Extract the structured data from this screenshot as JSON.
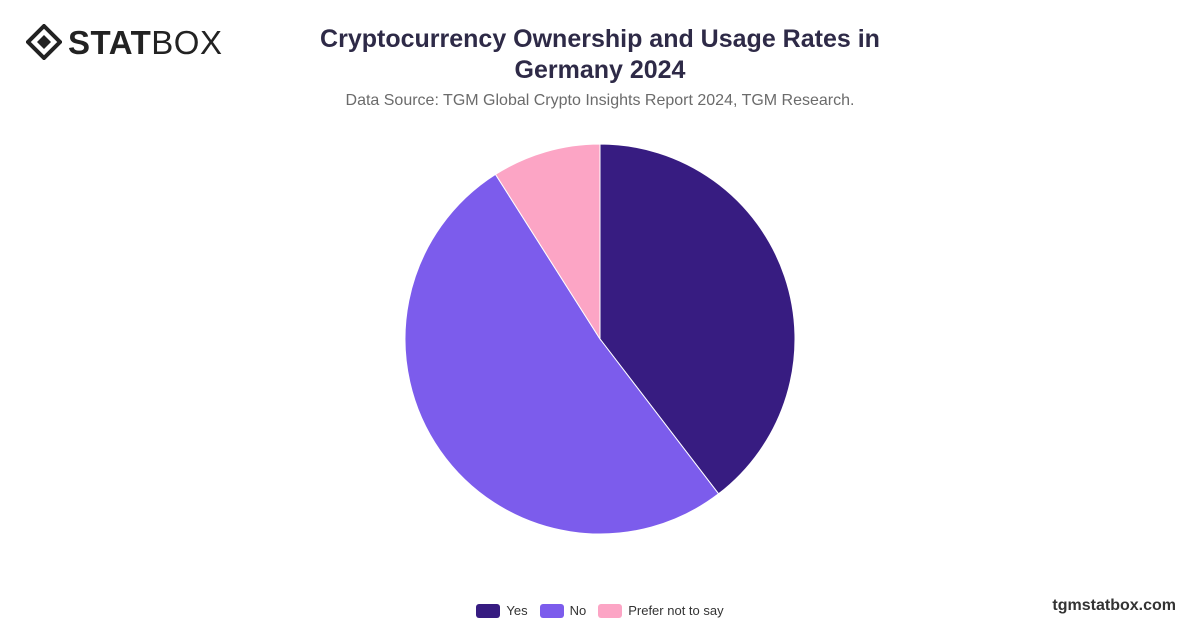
{
  "brand": {
    "bold": "STAT",
    "light": "BOX"
  },
  "footer": "tgmstatbox.com",
  "chart_data": {
    "type": "pie",
    "title": "Cryptocurrency Ownership and Usage Rates in Germany 2024",
    "subtitle": "Data Source: TGM Global Crypto Insights Report 2024, TGM Research.",
    "categories": [
      "Yes",
      "No",
      "Prefer not to say"
    ],
    "values": [
      39.6,
      51.4,
      9.0
    ],
    "colors": [
      "#371c81",
      "#7c5cec",
      "#fca5c5"
    ],
    "legend_position": "bottom"
  }
}
